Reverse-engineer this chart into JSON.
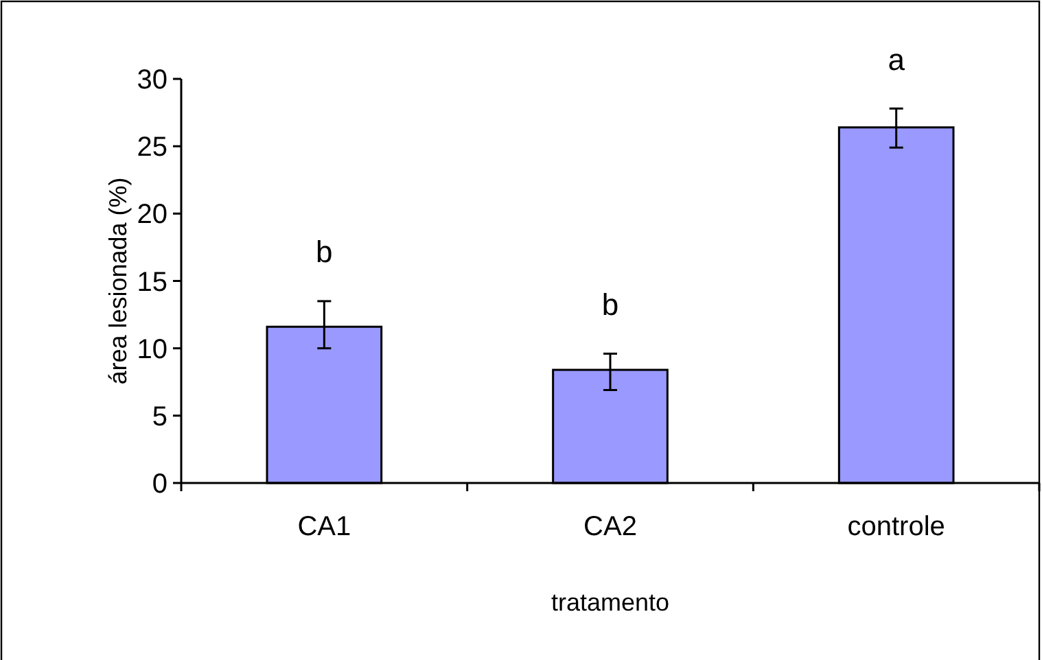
{
  "chart_data": {
    "type": "bar",
    "xlabel": "tratamento",
    "ylabel": "área lesionada (%)",
    "categories": [
      "CA1",
      "CA2",
      "controle"
    ],
    "values": [
      11.6,
      8.4,
      26.4
    ],
    "color": "#9999ff",
    "errors": [
      [
        10.0,
        13.5
      ],
      [
        6.9,
        9.6
      ],
      [
        24.9,
        27.8
      ]
    ],
    "ylim": [
      0,
      30
    ],
    "yticks": [
      0,
      5,
      10,
      15,
      20,
      25,
      30
    ],
    "grid": false,
    "annotations": [
      "b",
      "b",
      "a"
    ]
  }
}
